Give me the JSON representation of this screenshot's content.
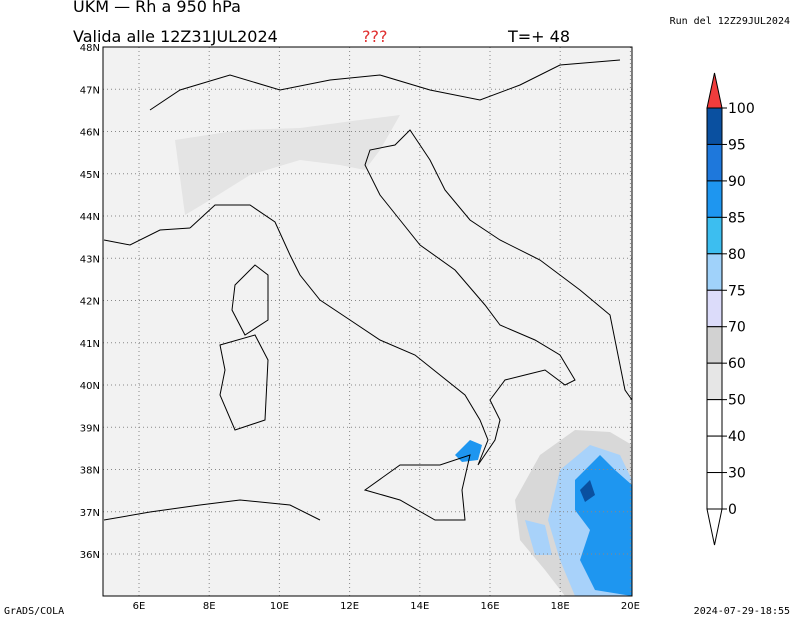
{
  "header": {
    "title": "UKM — Rh a 950 hPa",
    "valid": "Valida alle 12Z31JUL2024",
    "flag": "???",
    "step": "T=+ 48",
    "run": "Run del 12Z29JUL2024"
  },
  "map": {
    "lon_labels": [
      "6E",
      "8E",
      "10E",
      "12E",
      "14E",
      "16E",
      "18E",
      "20E"
    ],
    "lat_labels": [
      "48N",
      "47N",
      "46N",
      "45N",
      "44N",
      "43N",
      "42N",
      "41N",
      "40N",
      "39N",
      "38N",
      "37N",
      "36N"
    ]
  },
  "colorbar": {
    "labels": [
      100,
      95,
      90,
      85,
      80,
      75,
      70,
      60,
      50,
      40,
      30,
      0
    ]
  },
  "footer": {
    "left": "GrADS/COLA",
    "right": "2024-07-29-18:55"
  }
}
